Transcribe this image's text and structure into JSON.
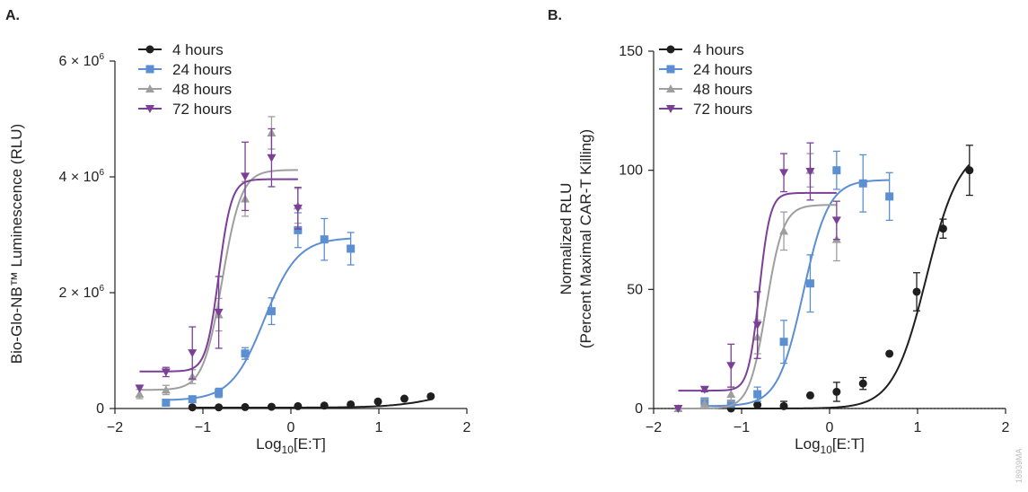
{
  "figure_code": "18939MA",
  "chart_data": [
    {
      "panel_label": "A.",
      "type": "scatter",
      "title": "",
      "xlabel_main": "Log",
      "xlabel_sub": "10",
      "xlabel_rest": "[E:T]",
      "ylabel_lines": [
        "Bio-Glo-NB™ Luminescence (RLU)"
      ],
      "xlim": [
        -2,
        2
      ],
      "ylim": [
        0,
        6000000
      ],
      "x_ticks": [
        -2,
        -1,
        0,
        1,
        2
      ],
      "x_tick_labels": [
        "−2",
        "−1",
        "0",
        "1",
        "2"
      ],
      "y_ticks": [
        0,
        2000000,
        4000000,
        6000000
      ],
      "y_tick_labels": [
        {
          "base": "0",
          "exp": ""
        },
        {
          "base": "2 × 10",
          "exp": "6"
        },
        {
          "base": "4 × 10",
          "exp": "6"
        },
        {
          "base": "6 × 10",
          "exp": "6"
        }
      ],
      "legend_position": "top-left",
      "series": [
        {
          "name": "4 hours",
          "color": "#1f1f1f",
          "marker": "circle",
          "points": [
            {
              "x": -1.12,
              "y": 20000,
              "err": 0
            },
            {
              "x": -0.82,
              "y": 20000,
              "err": 0
            },
            {
              "x": -0.52,
              "y": 25000,
              "err": 0
            },
            {
              "x": -0.22,
              "y": 30000,
              "err": 0
            },
            {
              "x": 0.08,
              "y": 40000,
              "err": 0
            },
            {
              "x": 0.38,
              "y": 50000,
              "err": 0
            },
            {
              "x": 0.68,
              "y": 70000,
              "err": 0
            },
            {
              "x": 0.99,
              "y": 120000,
              "err": 0
            },
            {
              "x": 1.29,
              "y": 170000,
              "err": 0
            },
            {
              "x": 1.59,
              "y": 210000,
              "err": 0
            }
          ],
          "fit": {
            "bottom": 15000,
            "top": 450000,
            "logec50": 1.8,
            "hill": 1.5,
            "xmin": -1.12,
            "xmax": 1.59
          }
        },
        {
          "name": "24 hours",
          "color": "#5b8fd1",
          "marker": "square",
          "points": [
            {
              "x": -1.42,
              "y": 100000,
              "err": 0
            },
            {
              "x": -1.12,
              "y": 160000,
              "err": 0
            },
            {
              "x": -0.82,
              "y": 270000,
              "err": 80000
            },
            {
              "x": -0.52,
              "y": 950000,
              "err": 100000
            },
            {
              "x": -0.22,
              "y": 1680000,
              "err": 230000
            },
            {
              "x": 0.08,
              "y": 3080000,
              "err": 300000
            },
            {
              "x": 0.38,
              "y": 2920000,
              "err": 360000
            },
            {
              "x": 0.68,
              "y": 2760000,
              "err": 280000
            }
          ],
          "fit": {
            "bottom": 140000,
            "top": 2950000,
            "logec50": -0.3,
            "hill": 2.3,
            "xmin": -1.42,
            "xmax": 0.68
          }
        },
        {
          "name": "48 hours",
          "color": "#9e9e9e",
          "marker": "triangle-up",
          "points": [
            {
              "x": -1.72,
              "y": 250000,
              "err": 80000
            },
            {
              "x": -1.42,
              "y": 320000,
              "err": 80000
            },
            {
              "x": -1.12,
              "y": 550000,
              "err": 120000
            },
            {
              "x": -0.82,
              "y": 1620000,
              "err": 280000
            },
            {
              "x": -0.52,
              "y": 3620000,
              "err": 300000
            },
            {
              "x": -0.22,
              "y": 4760000,
              "err": 280000
            },
            {
              "x": 0.08,
              "y": 3500000,
              "err": 300000
            }
          ],
          "fit": {
            "bottom": 320000,
            "top": 4120000,
            "logec50": -0.78,
            "hill": 4.0,
            "xmin": -1.72,
            "xmax": 0.08
          }
        },
        {
          "name": "72 hours",
          "color": "#7b3f98",
          "marker": "triangle-down",
          "points": [
            {
              "x": -1.72,
              "y": 350000,
              "err": 0
            },
            {
              "x": -1.42,
              "y": 630000,
              "err": 80000
            },
            {
              "x": -1.12,
              "y": 960000,
              "err": 450000
            },
            {
              "x": -0.82,
              "y": 1660000,
              "err": 620000
            },
            {
              "x": -0.52,
              "y": 4010000,
              "err": 590000
            },
            {
              "x": -0.22,
              "y": 4330000,
              "err": 500000
            },
            {
              "x": 0.08,
              "y": 3460000,
              "err": 360000
            }
          ],
          "fit": {
            "bottom": 640000,
            "top": 3960000,
            "logec50": -0.82,
            "hill": 6.0,
            "xmin": -1.72,
            "xmax": 0.08
          }
        }
      ]
    },
    {
      "panel_label": "B.",
      "type": "scatter",
      "title": "",
      "xlabel_main": "Log",
      "xlabel_sub": "10",
      "xlabel_rest": "[E:T]",
      "ylabel_lines": [
        "Normalized RLU",
        "(Percent Maximal CAR-T Killing)"
      ],
      "xlim": [
        -2,
        2
      ],
      "ylim": [
        0,
        150
      ],
      "x_ticks": [
        -2,
        -1,
        0,
        1,
        2
      ],
      "x_tick_labels": [
        "−2",
        "−1",
        "0",
        "1",
        "2"
      ],
      "y_ticks": [
        0,
        50,
        100,
        150
      ],
      "y_tick_labels": [
        {
          "base": "0",
          "exp": ""
        },
        {
          "base": "50",
          "exp": ""
        },
        {
          "base": "100",
          "exp": ""
        },
        {
          "base": "150",
          "exp": ""
        }
      ],
      "reference_line_y": 0,
      "legend_position": "top-left",
      "series": [
        {
          "name": "4 hours",
          "color": "#1f1f1f",
          "marker": "circle",
          "points": [
            {
              "x": -1.12,
              "y": 0,
              "err": 0
            },
            {
              "x": -0.82,
              "y": 1.5,
              "err": 1.5
            },
            {
              "x": -0.52,
              "y": 1,
              "err": 2
            },
            {
              "x": -0.22,
              "y": 5.5,
              "err": 0
            },
            {
              "x": 0.08,
              "y": 7,
              "err": 4
            },
            {
              "x": 0.38,
              "y": 10.5,
              "err": 2.5
            },
            {
              "x": 0.68,
              "y": 23,
              "err": 0
            },
            {
              "x": 0.99,
              "y": 49,
              "err": 8
            },
            {
              "x": 1.29,
              "y": 75.5,
              "err": 4
            },
            {
              "x": 1.59,
              "y": 100,
              "err": 10.5
            }
          ],
          "fit": {
            "bottom": 0,
            "top": 110,
            "logec50": 1.1,
            "hill": 2.3,
            "xmin": -1.12,
            "xmax": 1.59
          }
        },
        {
          "name": "24 hours",
          "color": "#5b8fd1",
          "marker": "square",
          "points": [
            {
              "x": -1.42,
              "y": 3,
              "err": 0
            },
            {
              "x": -1.12,
              "y": 2,
              "err": 0
            },
            {
              "x": -0.82,
              "y": 6,
              "err": 3
            },
            {
              "x": -0.52,
              "y": 28,
              "err": 9
            },
            {
              "x": -0.22,
              "y": 52.5,
              "err": 12
            },
            {
              "x": 0.08,
              "y": 100,
              "err": 8
            },
            {
              "x": 0.38,
              "y": 94.5,
              "err": 12
            },
            {
              "x": 0.68,
              "y": 89,
              "err": 10
            }
          ],
          "fit": {
            "bottom": 1,
            "top": 96,
            "logec50": -0.3,
            "hill": 3.0,
            "xmin": -1.42,
            "xmax": 0.68
          }
        },
        {
          "name": "48 hours",
          "color": "#9e9e9e",
          "marker": "triangle-up",
          "points": [
            {
              "x": -1.72,
              "y": 0,
              "err": 0
            },
            {
              "x": -1.42,
              "y": 2,
              "err": 2
            },
            {
              "x": -1.12,
              "y": 6,
              "err": 3
            },
            {
              "x": -0.82,
              "y": 30,
              "err": 7
            },
            {
              "x": -0.52,
              "y": 74.5,
              "err": 8
            },
            {
              "x": -0.22,
              "y": 100,
              "err": 7
            },
            {
              "x": 0.08,
              "y": 71,
              "err": 9
            }
          ],
          "fit": {
            "bottom": 0,
            "top": 85.5,
            "logec50": -0.72,
            "hill": 4.5,
            "xmin": -1.72,
            "xmax": 0.08
          }
        },
        {
          "name": "72 hours",
          "color": "#7b3f98",
          "marker": "triangle-down",
          "points": [
            {
              "x": -1.72,
              "y": 0,
              "err": 0
            },
            {
              "x": -1.42,
              "y": 8,
              "err": 1
            },
            {
              "x": -1.12,
              "y": 18,
              "err": 9
            },
            {
              "x": -0.82,
              "y": 35,
              "err": 14
            },
            {
              "x": -0.52,
              "y": 99,
              "err": 8
            },
            {
              "x": -0.22,
              "y": 99.5,
              "err": 12
            },
            {
              "x": 0.08,
              "y": 79,
              "err": 8
            }
          ],
          "fit": {
            "bottom": 7.5,
            "top": 90.5,
            "logec50": -0.8,
            "hill": 7.0,
            "xmin": -1.72,
            "xmax": 0.08
          }
        }
      ]
    }
  ]
}
